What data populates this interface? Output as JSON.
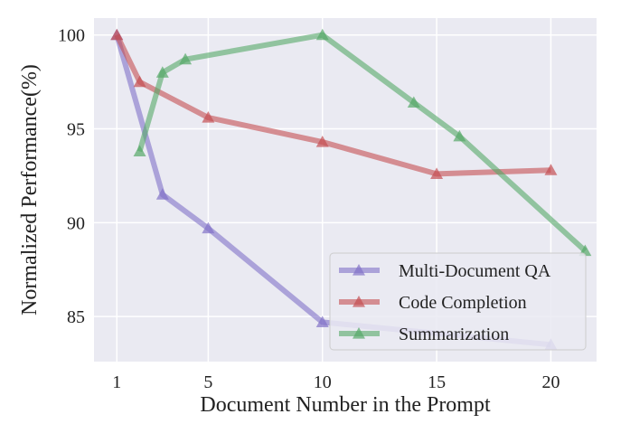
{
  "chart_data": {
    "type": "line",
    "xlabel": "Document Number in the Prompt",
    "ylabel": "Normalized Performance(%)",
    "xlim": [
      0,
      22
    ],
    "ylim": [
      82.6,
      100.9
    ],
    "xticks": [
      1,
      5,
      10,
      15,
      20
    ],
    "yticks": [
      85,
      90,
      95,
      100
    ],
    "grid": true,
    "legend": "lower right",
    "series": [
      {
        "name": "Multi-Document QA",
        "color": "#8172c8",
        "x": [
          1,
          3,
          5,
          10,
          20
        ],
        "values": [
          100,
          91.5,
          89.7,
          84.7,
          83.5
        ]
      },
      {
        "name": "Code Completion",
        "color": "#c44e52",
        "x": [
          1,
          2,
          5,
          10,
          15,
          20
        ],
        "values": [
          100,
          97.5,
          95.6,
          94.3,
          92.6,
          92.8
        ]
      },
      {
        "name": "Summarization",
        "color": "#55a868",
        "x": [
          2,
          3,
          4,
          10,
          14,
          16,
          21.5
        ],
        "values": [
          93.8,
          98,
          98.7,
          100,
          96.4,
          94.6,
          88.5
        ]
      }
    ]
  }
}
